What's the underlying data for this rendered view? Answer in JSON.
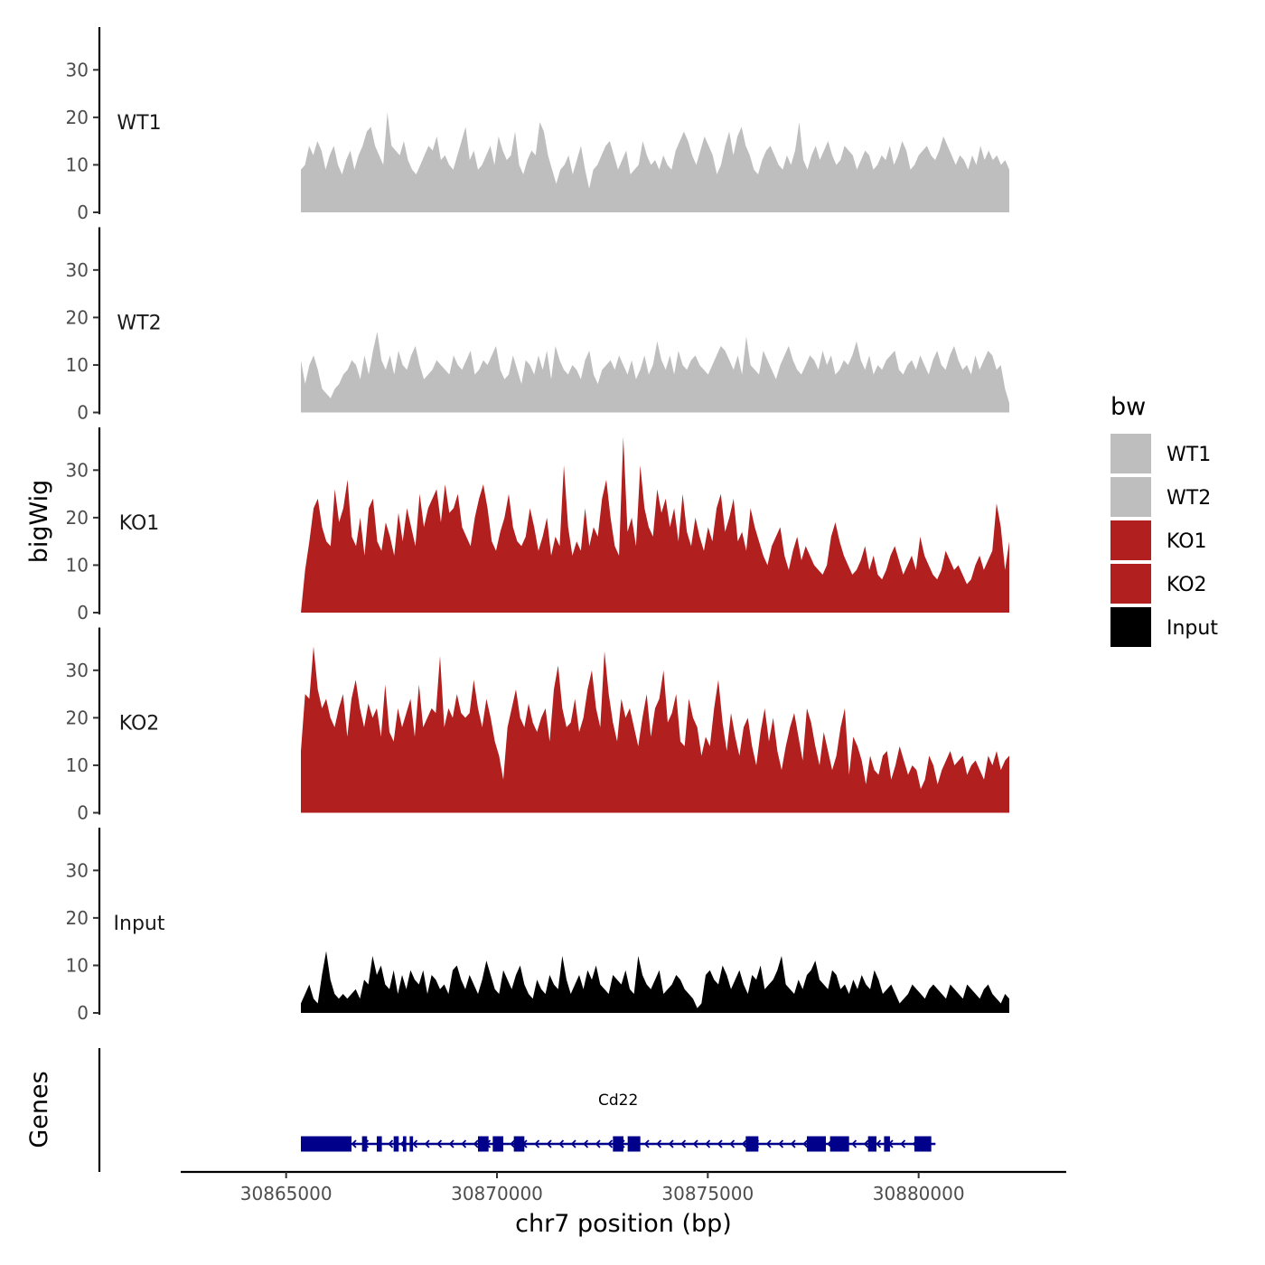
{
  "chart_data": {
    "type": "area",
    "title": "",
    "xlabel": "chr7 position (bp)",
    "ylabel": "bigWig",
    "genes_label": "Genes",
    "xlim": [
      30862500,
      30883500
    ],
    "ylim": [
      0,
      39
    ],
    "x_ticks": [
      30865000,
      30870000,
      30875000,
      30880000
    ],
    "x_tick_labels": [
      "30865000",
      "30870000",
      "30875000",
      "30880000"
    ],
    "y_ticks": [
      0,
      10,
      20,
      30
    ],
    "y_tick_labels": [
      "0",
      "10",
      "20",
      "30"
    ],
    "track_x_range": [
      30865350,
      30882150
    ],
    "legend": {
      "title": "bw",
      "position": "right",
      "entries": [
        {
          "label": "WT1",
          "color": "#bebebe"
        },
        {
          "label": "WT2",
          "color": "#bebebe"
        },
        {
          "label": "KO1",
          "color": "#b21f1f"
        },
        {
          "label": "KO2",
          "color": "#b21f1f"
        },
        {
          "label": "Input",
          "color": "#000000"
        }
      ]
    },
    "series": [
      {
        "name": "WT1",
        "label": "WT1",
        "color": "#bebebe",
        "values": [
          9,
          10,
          14,
          12,
          15,
          13,
          9,
          12,
          14,
          10,
          8,
          11,
          13,
          9,
          12,
          14,
          17,
          18,
          14,
          12,
          10,
          21,
          14,
          13,
          12,
          15,
          11,
          9,
          8,
          10,
          12,
          14,
          13,
          16,
          11,
          12,
          10,
          9,
          12,
          15,
          18,
          11,
          13,
          9,
          10,
          12,
          14,
          10,
          16,
          13,
          11,
          12,
          17,
          10,
          8,
          11,
          13,
          12,
          19,
          17,
          12,
          9,
          6,
          9,
          10,
          12,
          8,
          11,
          14,
          9,
          5,
          9,
          10,
          12,
          14,
          15,
          12,
          9,
          11,
          13,
          8,
          9,
          10,
          15,
          12,
          10,
          11,
          9,
          12,
          10,
          9,
          13,
          15,
          17,
          15,
          12,
          10,
          13,
          16,
          14,
          12,
          8,
          10,
          14,
          17,
          12,
          16,
          18,
          14,
          12,
          9,
          8,
          11,
          13,
          14,
          12,
          10,
          9,
          12,
          10,
          13,
          19,
          11,
          9,
          12,
          14,
          11,
          13,
          15,
          12,
          10,
          11,
          14,
          13,
          12,
          9,
          11,
          13,
          12,
          9,
          10,
          12,
          11,
          14,
          10,
          12,
          15,
          13,
          9,
          10,
          12,
          13,
          14,
          12,
          11,
          13,
          16,
          14,
          12,
          10,
          12,
          11,
          9,
          12,
          10,
          14,
          11,
          13,
          11,
          12,
          10,
          11,
          9
        ]
      },
      {
        "name": "WT2",
        "label": "WT2",
        "color": "#bebebe",
        "values": [
          11,
          6,
          10,
          12,
          9,
          5,
          4,
          3,
          5,
          6,
          8,
          9,
          11,
          10,
          7,
          12,
          8,
          13,
          17,
          11,
          9,
          12,
          8,
          13,
          10,
          9,
          12,
          14,
          10,
          7,
          8,
          9,
          11,
          10,
          9,
          8,
          12,
          10,
          9,
          11,
          13,
          8,
          9,
          11,
          10,
          12,
          14,
          9,
          7,
          8,
          12,
          9,
          6,
          11,
          10,
          8,
          12,
          9,
          13,
          7,
          14,
          11,
          9,
          8,
          10,
          9,
          7,
          11,
          13,
          8,
          6,
          9,
          10,
          11,
          9,
          12,
          10,
          8,
          11,
          7,
          9,
          12,
          8,
          10,
          15,
          11,
          9,
          12,
          8,
          13,
          10,
          9,
          11,
          12,
          10,
          9,
          8,
          10,
          12,
          14,
          13,
          11,
          9,
          12,
          8,
          16,
          10,
          9,
          8,
          13,
          11,
          9,
          7,
          10,
          12,
          14,
          11,
          9,
          8,
          10,
          12,
          11,
          9,
          13,
          10,
          12,
          8,
          9,
          11,
          10,
          12,
          15,
          11,
          9,
          12,
          8,
          10,
          9,
          11,
          12,
          13,
          9,
          8,
          10,
          11,
          9,
          12,
          10,
          8,
          11,
          13,
          10,
          9,
          12,
          14,
          11,
          9,
          10,
          8,
          12,
          9,
          11,
          13,
          12,
          9,
          10,
          5,
          2
        ]
      },
      {
        "name": "KO1",
        "label": "KO1",
        "color": "#b21f1f",
        "values": [
          0,
          9,
          15,
          22,
          24,
          18,
          15,
          14,
          26,
          19,
          22,
          28,
          16,
          14,
          20,
          12,
          22,
          24,
          15,
          13,
          19,
          16,
          12,
          21,
          15,
          22,
          18,
          14,
          25,
          18,
          22,
          24,
          26,
          19,
          27,
          21,
          22,
          25,
          18,
          16,
          14,
          20,
          24,
          27,
          22,
          15,
          13,
          17,
          20,
          25,
          18,
          15,
          14,
          16,
          22,
          18,
          13,
          16,
          20,
          12,
          16,
          14,
          31,
          18,
          12,
          15,
          13,
          22,
          14,
          18,
          16,
          24,
          28,
          20,
          14,
          12,
          37,
          17,
          20,
          14,
          31,
          22,
          18,
          16,
          26,
          21,
          24,
          18,
          22,
          15,
          25,
          17,
          14,
          20,
          16,
          13,
          18,
          15,
          22,
          25,
          17,
          20,
          24,
          15,
          17,
          13,
          22,
          18,
          15,
          12,
          10,
          14,
          16,
          18,
          12,
          9,
          13,
          16,
          11,
          14,
          12,
          10,
          9,
          8,
          10,
          16,
          19,
          15,
          12,
          10,
          8,
          9,
          11,
          14,
          9,
          12,
          8,
          7,
          9,
          12,
          14,
          11,
          8,
          10,
          12,
          9,
          16,
          12,
          10,
          8,
          7,
          9,
          13,
          11,
          9,
          10,
          8,
          6,
          7,
          10,
          12,
          9,
          11,
          13,
          23,
          18,
          9,
          15
        ]
      },
      {
        "name": "KO2",
        "label": "KO2",
        "color": "#b21f1f",
        "values": [
          13,
          25,
          24,
          35,
          26,
          22,
          24,
          20,
          18,
          22,
          25,
          16,
          24,
          28,
          22,
          18,
          23,
          20,
          22,
          16,
          27,
          17,
          15,
          22,
          18,
          21,
          24,
          16,
          27,
          18,
          20,
          22,
          21,
          33,
          18,
          22,
          20,
          25,
          21,
          20,
          21,
          28,
          22,
          18,
          24,
          20,
          15,
          12,
          7,
          18,
          22,
          26,
          20,
          18,
          23,
          19,
          17,
          20,
          22,
          15,
          26,
          31,
          22,
          18,
          19,
          24,
          17,
          20,
          26,
          30,
          22,
          18,
          34,
          25,
          19,
          15,
          24,
          20,
          22,
          18,
          14,
          20,
          25,
          16,
          22,
          24,
          30,
          19,
          21,
          25,
          15,
          14,
          24,
          20,
          18,
          12,
          16,
          14,
          22,
          28,
          19,
          13,
          21,
          16,
          12,
          18,
          20,
          14,
          10,
          17,
          22,
          15,
          20,
          13,
          9,
          14,
          18,
          21,
          16,
          11,
          22,
          19,
          14,
          10,
          17,
          13,
          9,
          12,
          18,
          22,
          8,
          16,
          14,
          11,
          6,
          12,
          9,
          8,
          12,
          13,
          7,
          10,
          14,
          11,
          8,
          10,
          9,
          5,
          7,
          12,
          10,
          6,
          9,
          11,
          13,
          10,
          11,
          12,
          8,
          10,
          11,
          9,
          7,
          12,
          10,
          13,
          9,
          11,
          12
        ]
      },
      {
        "name": "Input",
        "label": "Input",
        "color": "#000000",
        "values": [
          2,
          4,
          6,
          3,
          2,
          8,
          13,
          7,
          4,
          3,
          4,
          3,
          4,
          5,
          3,
          7,
          6,
          12,
          8,
          10,
          6,
          5,
          9,
          4,
          8,
          5,
          9,
          7,
          6,
          9,
          4,
          8,
          7,
          5,
          6,
          4,
          9,
          10,
          7,
          5,
          8,
          6,
          4,
          7,
          11,
          8,
          5,
          4,
          9,
          7,
          5,
          8,
          10,
          6,
          4,
          3,
          7,
          5,
          4,
          8,
          6,
          5,
          12,
          7,
          4,
          6,
          8,
          5,
          9,
          7,
          10,
          6,
          5,
          4,
          8,
          7,
          6,
          9,
          5,
          4,
          12,
          8,
          6,
          5,
          7,
          9,
          4,
          5,
          6,
          8,
          7,
          5,
          4,
          3,
          1,
          2,
          8,
          9,
          7,
          6,
          10,
          8,
          5,
          7,
          9,
          6,
          4,
          8,
          7,
          10,
          5,
          6,
          7,
          9,
          12,
          6,
          5,
          4,
          7,
          5,
          8,
          9,
          11,
          7,
          6,
          5,
          9,
          8,
          5,
          6,
          4,
          7,
          5,
          8,
          6,
          5,
          9,
          7,
          4,
          5,
          6,
          4,
          2,
          3,
          4,
          6,
          5,
          4,
          3,
          5,
          6,
          5,
          4,
          3,
          6,
          5,
          4,
          3,
          6,
          5,
          4,
          3,
          5,
          6,
          4,
          3,
          2,
          4,
          3
        ]
      }
    ],
    "genes": [
      {
        "name": "Cd22",
        "strand": "-",
        "start": 30865350,
        "end": 30880400,
        "color": "#00008b",
        "exons": [
          [
            30865350,
            30866550
          ],
          [
            30866800,
            30866920
          ],
          [
            30867150,
            30867270
          ],
          [
            30867550,
            30867670
          ],
          [
            30867770,
            30867850
          ],
          [
            30867930,
            30868010
          ],
          [
            30869550,
            30869800
          ],
          [
            30869900,
            30870150
          ],
          [
            30870400,
            30870650
          ],
          [
            30872750,
            30873000
          ],
          [
            30873100,
            30873400
          ],
          [
            30875900,
            30876200
          ],
          [
            30877350,
            30877800
          ],
          [
            30877900,
            30878350
          ],
          [
            30878800,
            30879000
          ],
          [
            30879180,
            30879320
          ],
          [
            30879900,
            30880300
          ]
        ]
      }
    ]
  }
}
